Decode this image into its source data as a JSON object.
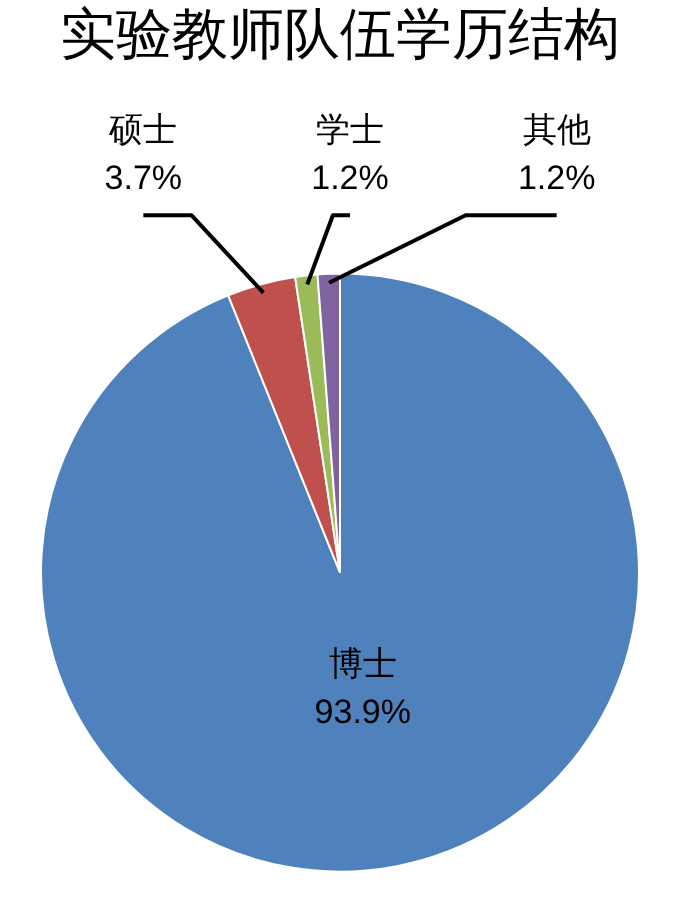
{
  "chart_data": {
    "type": "pie",
    "title": "实验教师队伍学历结构",
    "categories": [
      "博士",
      "硕士",
      "学士",
      "其他"
    ],
    "values": [
      93.9,
      3.7,
      1.2,
      1.2
    ],
    "colors": [
      "#4f81bd",
      "#c0504d",
      "#9bbb59",
      "#8064a2"
    ],
    "value_labels": [
      "93.9%",
      "3.7%",
      "1.2%",
      "1.2%"
    ],
    "legend": false
  }
}
